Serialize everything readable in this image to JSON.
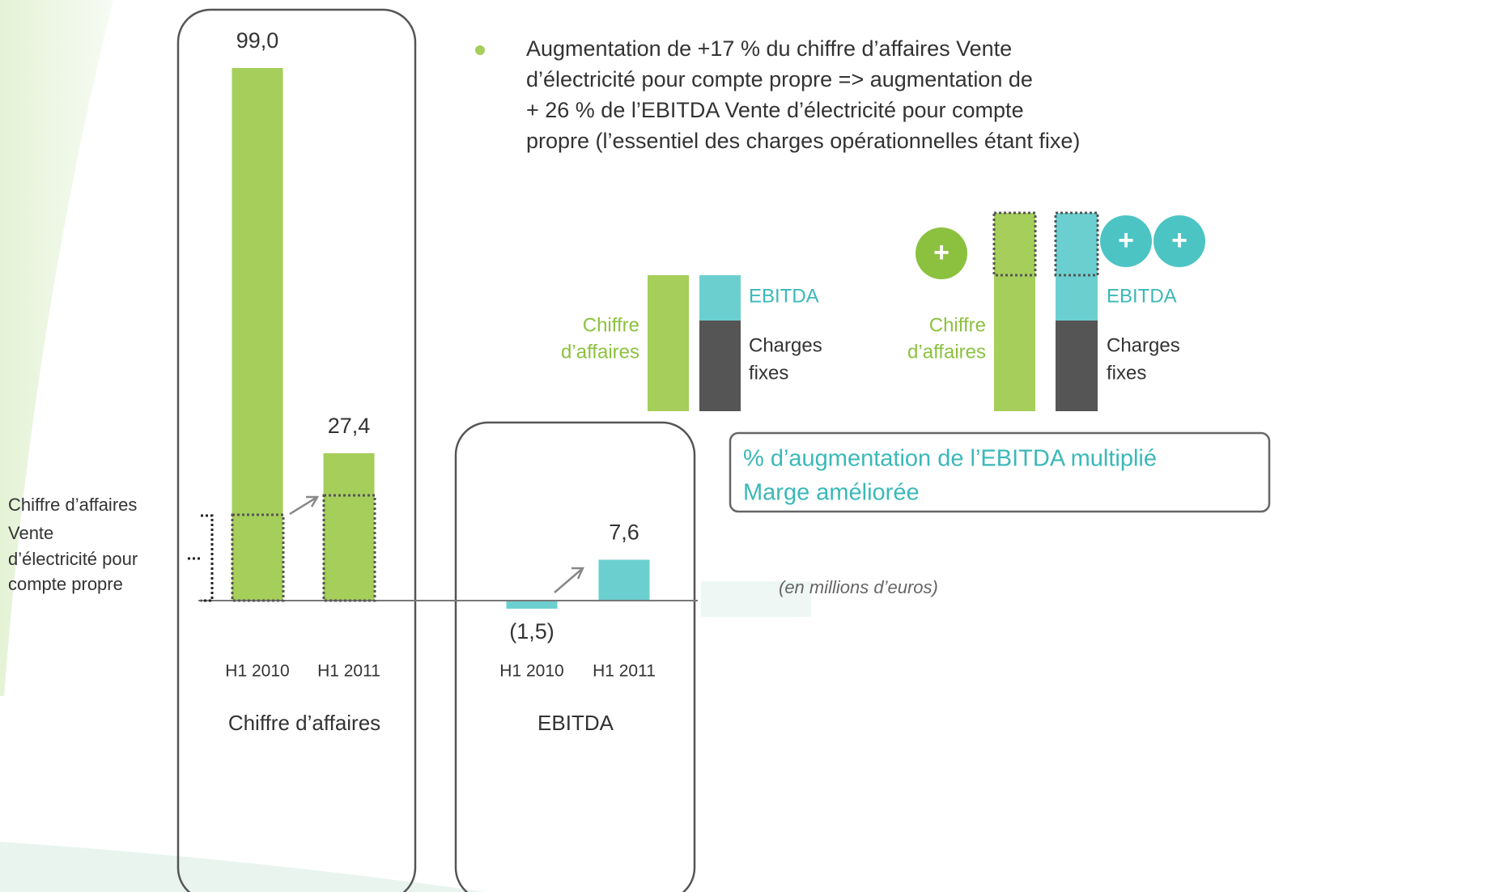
{
  "chart_data": [
    {
      "type": "bar",
      "title": "Chiffre d’affaires",
      "categories": [
        "H1 2010",
        "H1 2011"
      ],
      "values": [
        99.0,
        27.4
      ],
      "value_labels": [
        "99,0",
        "27,4"
      ],
      "color": "#a6ce5a"
    },
    {
      "type": "bar",
      "title": "EBITDA",
      "categories": [
        "H1 2010",
        "H1 2011"
      ],
      "values": [
        -1.5,
        7.6
      ],
      "value_labels": [
        "(1,5)",
        "7,6"
      ],
      "color": "#6ccfcf"
    }
  ],
  "bullet": [
    "Augmentation de +17 % du chiffre d’affaires  Vente",
    "d’électricité pour compte propre => augmentation de",
    "+ 26 % de l’EBITDA Vente d’électricité pour compte",
    "propre (l’essentiel des charges opérationnelles étant fixe)"
  ],
  "annotation": [
    "Chiffre d’affaires",
    "Vente",
    "d’électricité pour",
    "compte propre"
  ],
  "unit_note": "(en millions d’euros)",
  "callout": [
    "% d’augmentation de l’EBITDA multiplié",
    "Marge améliorée"
  ],
  "diagrams": [
    {
      "revenue": [
        "Chiffre",
        "d’affaires"
      ],
      "ebitda": "EBITDA",
      "charges": [
        "Charges",
        "fixes"
      ]
    },
    {
      "revenue": [
        "Chiffre",
        "d’affaires"
      ],
      "ebitda": "EBITDA",
      "charges": [
        "Charges",
        "fixes"
      ],
      "plus": [
        "+",
        "+",
        "+"
      ]
    }
  ]
}
